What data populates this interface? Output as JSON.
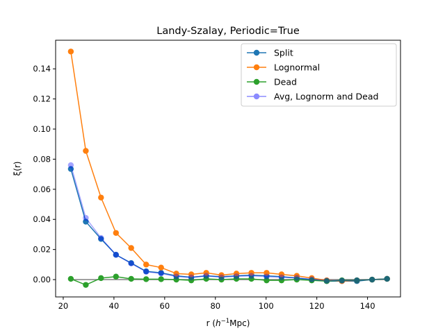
{
  "chart_data": {
    "type": "line",
    "title": "Landy-Szalay, Periodic=True",
    "xlabel_main": "r (",
    "xlabel_h": "h",
    "xlabel_exp": "−1",
    "xlabel_unit": "Mpc)",
    "ylabel": "ξ(r)",
    "xlim": [
      17,
      153
    ],
    "ylim": [
      -0.0115,
      0.159
    ],
    "xticks": [
      20,
      40,
      60,
      80,
      100,
      120,
      140
    ],
    "yticks": [
      0.0,
      0.02,
      0.04,
      0.06,
      0.08,
      0.1,
      0.12,
      0.14
    ],
    "ytick_labels": [
      "0.00",
      "0.02",
      "0.04",
      "0.06",
      "0.08",
      "0.10",
      "0.12",
      "0.14"
    ],
    "x": [
      23.0,
      28.9,
      34.9,
      40.8,
      46.8,
      52.7,
      58.6,
      64.6,
      70.5,
      76.4,
      82.4,
      88.3,
      94.2,
      100.2,
      106.1,
      112.1,
      118.0,
      123.9,
      129.9,
      135.8,
      141.8,
      147.7
    ],
    "series": [
      {
        "name": "Split",
        "color": "#1f77b4",
        "alpha": 1,
        "values": [
          0.0735,
          0.0385,
          0.027,
          0.0165,
          0.011,
          0.0055,
          0.0045,
          0.0025,
          0.0015,
          0.0025,
          0.002,
          0.0025,
          0.003,
          0.0025,
          0.002,
          0.001,
          0.0,
          -0.001,
          -0.001,
          -0.001,
          0.0,
          0.0005
        ]
      },
      {
        "name": "Lognormal",
        "color": "#ff7f0e",
        "alpha": 1,
        "values": [
          0.1515,
          0.0855,
          0.0545,
          0.031,
          0.021,
          0.01,
          0.008,
          0.004,
          0.0035,
          0.0045,
          0.003,
          0.004,
          0.0045,
          0.0045,
          0.0035,
          0.0025,
          0.001,
          -0.0005,
          -0.001,
          -0.0005,
          0.0,
          0.0005
        ]
      },
      {
        "name": "Dead",
        "color": "#2ca02c",
        "alpha": 1,
        "values": [
          0.0005,
          -0.0035,
          0.001,
          0.002,
          0.0005,
          0.0003,
          0.0003,
          0.0,
          -0.0005,
          0.0005,
          0.0,
          0.0005,
          0.0005,
          -0.0005,
          -0.0005,
          0.0,
          -0.0005,
          -0.001,
          -0.0005,
          -0.0005,
          0.0,
          0.0005
        ]
      },
      {
        "name": "Avg, Lognorm and Dead",
        "color": "#0000ff",
        "alpha": 0.35,
        "values": [
          0.076,
          0.041,
          0.0277,
          0.0165,
          0.0107,
          0.0052,
          0.0041,
          0.002,
          0.0015,
          0.0025,
          0.0015,
          0.0022,
          0.0025,
          0.002,
          0.0015,
          0.0012,
          0.0002,
          -0.0007,
          -0.0007,
          -0.0005,
          0.0,
          0.0005
        ]
      }
    ],
    "hline": {
      "y": 0,
      "color": "#808080"
    },
    "legend_position": "upper-right"
  }
}
